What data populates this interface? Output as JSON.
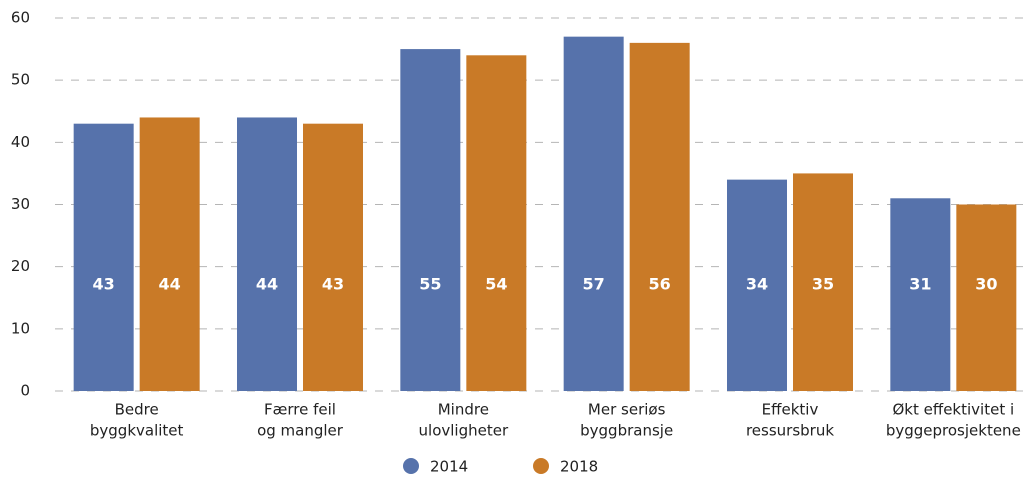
{
  "chart_data": {
    "type": "bar",
    "categories": [
      [
        "Bedre",
        "byggkvalitet"
      ],
      [
        "Færre feil",
        "og mangler"
      ],
      [
        "Mindre",
        "ulovligheter"
      ],
      [
        "Mer seriøs",
        "byggbransje"
      ],
      [
        "Effektiv",
        "ressursbruk"
      ],
      [
        "Økt effektivitet i",
        "byggeprosjektene"
      ]
    ],
    "series": [
      {
        "name": "2014",
        "color": "#5672ab",
        "values": [
          43,
          44,
          55,
          57,
          34,
          31
        ]
      },
      {
        "name": "2018",
        "color": "#c97a27",
        "values": [
          44,
          43,
          54,
          56,
          35,
          30
        ]
      }
    ],
    "ylim": [
      0,
      60
    ],
    "yticks": [
      0,
      10,
      20,
      30,
      40,
      50,
      60
    ],
    "grid": true,
    "legend": "bottom"
  }
}
